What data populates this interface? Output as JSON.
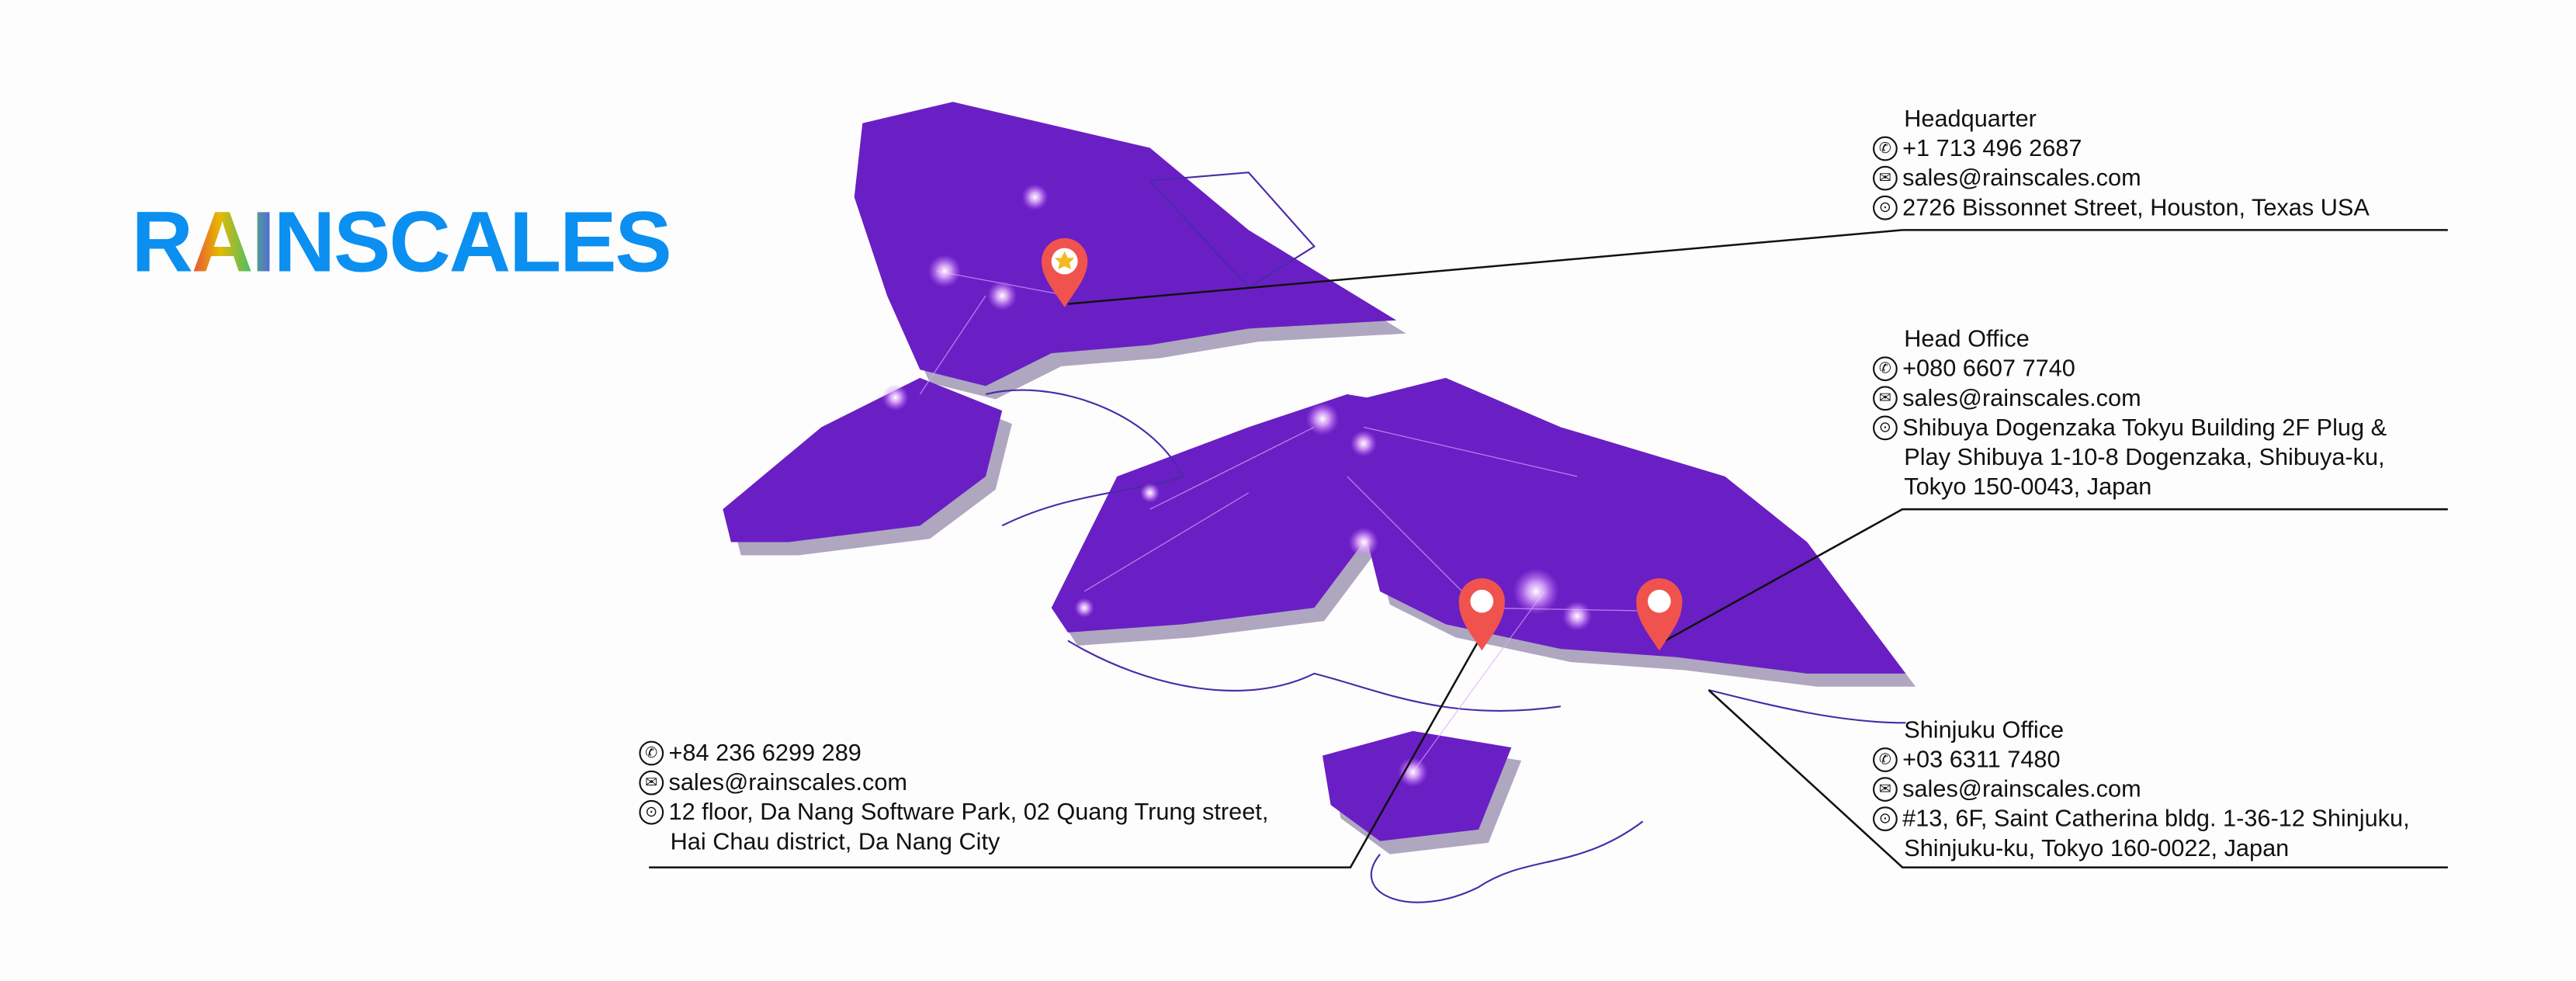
{
  "brand": {
    "logo_text_left": "R",
    "logo_text_ai": "AI",
    "logo_text_right": "NSCALES",
    "color": "#0b8ff0"
  },
  "colors": {
    "map_fill": "#6a1fc4",
    "map_shadow": "#9b91b0",
    "pin": "#f0534e",
    "line": "#111111"
  },
  "offices": [
    {
      "title": "Headquarter",
      "phone": "+1 713 496 2687",
      "email": "sales@rainscales.com",
      "address": [
        "2726 Bissonnet Street, Houston, Texas USA"
      ]
    },
    {
      "title": "Head Office",
      "phone": "+080 6607 7740",
      "email": "sales@rainscales.com",
      "address": [
        "Shibuya Dogenzaka Tokyu Building 2F Plug &",
        "Play Shibuya 1-10-8 Dogenzaka, Shibuya-ku,",
        "Tokyo 150-0043, Japan"
      ]
    },
    {
      "title": "Shinjuku Office",
      "phone": "+03 6311 7480",
      "email": "sales@rainscales.com",
      "address": [
        "#13, 6F, Saint Catherina bldg. 1-36-12 Shinjuku,",
        "Shinjuku-ku, Tokyo 160-0022, Japan"
      ]
    },
    {
      "title": "",
      "phone": "+84 236 6299 289",
      "email": "sales@rainscales.com",
      "address": [
        "12 floor, Da Nang Software Park, 02 Quang Trung street,",
        "Hai Chau district, Da Nang City"
      ]
    }
  ],
  "icons": {
    "phone": "phone-icon",
    "email": "mail-icon",
    "address": "location-pin-icon",
    "hq_pin": "star-pin-icon",
    "office_pin": "map-pin-icon"
  }
}
